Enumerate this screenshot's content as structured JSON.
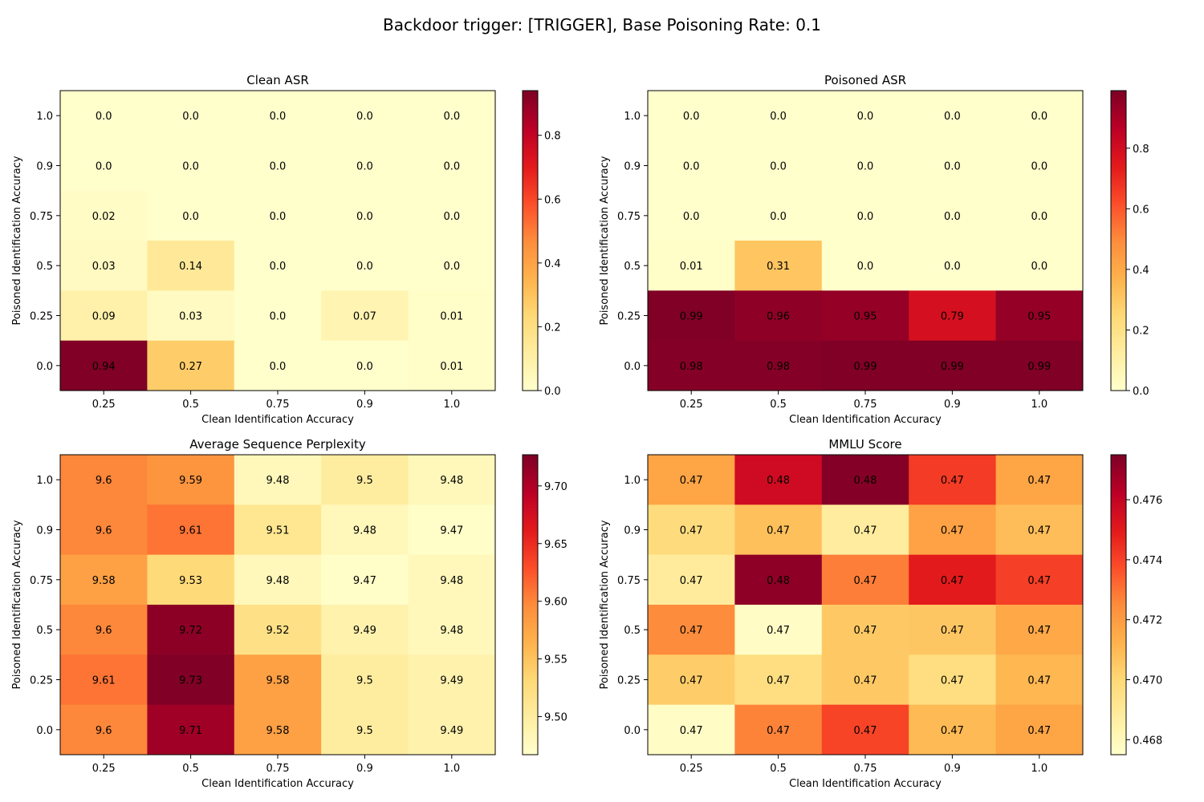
{
  "figure": {
    "title": "Backdoor trigger: [TRIGGER], Base Poisoning Rate: 0.1"
  },
  "colormap": {
    "name": "YlOrRd",
    "stops": [
      "#ffffcc",
      "#ffeda0",
      "#fed976",
      "#feb24c",
      "#fd8d3c",
      "#fc4e2a",
      "#e31a1c",
      "#bd0026",
      "#800026"
    ]
  },
  "chart_data": [
    {
      "type": "heatmap",
      "title": "Clean ASR",
      "xlabel": "Clean Identification Accuracy",
      "ylabel": "Poisoned Identification Accuracy",
      "x": [
        "0.25",
        "0.5",
        "0.75",
        "0.9",
        "1.0"
      ],
      "y": [
        "1.0",
        "0.9",
        "0.75",
        "0.5",
        "0.25",
        "0.0"
      ],
      "values": [
        [
          0.0,
          0.0,
          0.0,
          0.0,
          0.0
        ],
        [
          0.0,
          0.0,
          0.0,
          0.0,
          0.0
        ],
        [
          0.02,
          0.0,
          0.0,
          0.0,
          0.0
        ],
        [
          0.03,
          0.14,
          0.0,
          0.0,
          0.0
        ],
        [
          0.09,
          0.03,
          0.0,
          0.07,
          0.01
        ],
        [
          0.94,
          0.27,
          0.0,
          0.0,
          0.01
        ]
      ],
      "labels": [
        [
          "0.0",
          "0.0",
          "0.0",
          "0.0",
          "0.0"
        ],
        [
          "0.0",
          "0.0",
          "0.0",
          "0.0",
          "0.0"
        ],
        [
          "0.02",
          "0.0",
          "0.0",
          "0.0",
          "0.0"
        ],
        [
          "0.03",
          "0.14",
          "0.0",
          "0.0",
          "0.0"
        ],
        [
          "0.09",
          "0.03",
          "0.0",
          "0.07",
          "0.01"
        ],
        [
          "0.94",
          "0.27",
          "0.0",
          "0.0",
          "0.01"
        ]
      ],
      "colorbar": {
        "range": [
          0.0,
          0.94
        ],
        "ticks": [
          0.0,
          0.2,
          0.4,
          0.6,
          0.8
        ],
        "tick_labels": [
          "0.0",
          "0.2",
          "0.4",
          "0.6",
          "0.8"
        ]
      }
    },
    {
      "type": "heatmap",
      "title": "Poisoned ASR",
      "xlabel": "Clean Identification Accuracy",
      "ylabel": "Poisoned Identification Accuracy",
      "x": [
        "0.25",
        "0.5",
        "0.75",
        "0.9",
        "1.0"
      ],
      "y": [
        "1.0",
        "0.9",
        "0.75",
        "0.5",
        "0.25",
        "0.0"
      ],
      "values": [
        [
          0.0,
          0.0,
          0.0,
          0.0,
          0.0
        ],
        [
          0.0,
          0.0,
          0.0,
          0.0,
          0.0
        ],
        [
          0.0,
          0.0,
          0.0,
          0.0,
          0.0
        ],
        [
          0.01,
          0.31,
          0.0,
          0.0,
          0.0
        ],
        [
          0.99,
          0.96,
          0.95,
          0.79,
          0.95
        ],
        [
          0.98,
          0.98,
          0.99,
          0.99,
          0.99
        ]
      ],
      "labels": [
        [
          "0.0",
          "0.0",
          "0.0",
          "0.0",
          "0.0"
        ],
        [
          "0.0",
          "0.0",
          "0.0",
          "0.0",
          "0.0"
        ],
        [
          "0.0",
          "0.0",
          "0.0",
          "0.0",
          "0.0"
        ],
        [
          "0.01",
          "0.31",
          "0.0",
          "0.0",
          "0.0"
        ],
        [
          "0.99",
          "0.96",
          "0.95",
          "0.79",
          "0.95"
        ],
        [
          "0.98",
          "0.98",
          "0.99",
          "0.99",
          "0.99"
        ]
      ],
      "colorbar": {
        "range": [
          0.0,
          0.99
        ],
        "ticks": [
          0.0,
          0.2,
          0.4,
          0.6,
          0.8
        ],
        "tick_labels": [
          "0.0",
          "0.2",
          "0.4",
          "0.6",
          "0.8"
        ]
      }
    },
    {
      "type": "heatmap",
      "title": "Average Sequence Perplexity",
      "xlabel": "Clean Identification Accuracy",
      "ylabel": "Poisoned Identification Accuracy",
      "x": [
        "0.25",
        "0.5",
        "0.75",
        "0.9",
        "1.0"
      ],
      "y": [
        "1.0",
        "0.9",
        "0.75",
        "0.5",
        "0.25",
        "0.0"
      ],
      "values": [
        [
          9.6,
          9.59,
          9.48,
          9.5,
          9.48
        ],
        [
          9.6,
          9.61,
          9.51,
          9.48,
          9.47
        ],
        [
          9.58,
          9.53,
          9.48,
          9.47,
          9.48
        ],
        [
          9.6,
          9.72,
          9.52,
          9.49,
          9.48
        ],
        [
          9.61,
          9.73,
          9.58,
          9.5,
          9.49
        ],
        [
          9.6,
          9.71,
          9.58,
          9.5,
          9.49
        ]
      ],
      "labels": [
        [
          "9.6",
          "9.59",
          "9.48",
          "9.5",
          "9.48"
        ],
        [
          "9.6",
          "9.61",
          "9.51",
          "9.48",
          "9.47"
        ],
        [
          "9.58",
          "9.53",
          "9.48",
          "9.47",
          "9.48"
        ],
        [
          "9.6",
          "9.72",
          "9.52",
          "9.49",
          "9.48"
        ],
        [
          "9.61",
          "9.73",
          "9.58",
          "9.5",
          "9.49"
        ],
        [
          "9.6",
          "9.71",
          "9.58",
          "9.5",
          "9.49"
        ]
      ],
      "colorbar": {
        "range": [
          9.467,
          9.727
        ],
        "ticks": [
          9.5,
          9.55,
          9.6,
          9.65,
          9.7
        ],
        "tick_labels": [
          "9.50",
          "9.55",
          "9.60",
          "9.65",
          "9.70"
        ]
      }
    },
    {
      "type": "heatmap",
      "title": "MMLU Score",
      "xlabel": "Clean Identification Accuracy",
      "ylabel": "Poisoned Identification Accuracy",
      "x": [
        "0.25",
        "0.5",
        "0.75",
        "0.9",
        "1.0"
      ],
      "y": [
        "1.0",
        "0.9",
        "0.75",
        "0.5",
        "0.25",
        "0.0"
      ],
      "values": [
        [
          0.4717,
          0.4757,
          0.4774,
          0.4742,
          0.4717
        ],
        [
          0.4698,
          0.4708,
          0.4688,
          0.4718,
          0.4709
        ],
        [
          0.4689,
          0.4772,
          0.4728,
          0.475,
          0.4741
        ],
        [
          0.4725,
          0.4677,
          0.4705,
          0.4706,
          0.4716
        ],
        [
          0.4704,
          0.4697,
          0.4705,
          0.4697,
          0.4711
        ],
        [
          0.4677,
          0.4727,
          0.474,
          0.471,
          0.4717
        ]
      ],
      "labels": [
        [
          "0.47",
          "0.48",
          "0.48",
          "0.47",
          "0.47"
        ],
        [
          "0.47",
          "0.47",
          "0.47",
          "0.47",
          "0.47"
        ],
        [
          "0.47",
          "0.48",
          "0.47",
          "0.47",
          "0.47"
        ],
        [
          "0.47",
          "0.47",
          "0.47",
          "0.47",
          "0.47"
        ],
        [
          "0.47",
          "0.47",
          "0.47",
          "0.47",
          "0.47"
        ],
        [
          "0.47",
          "0.47",
          "0.47",
          "0.47",
          "0.47"
        ]
      ],
      "colorbar": {
        "range": [
          0.4675,
          0.4775
        ],
        "ticks": [
          0.468,
          0.47,
          0.472,
          0.474,
          0.476
        ],
        "tick_labels": [
          "0.468",
          "0.470",
          "0.472",
          "0.474",
          "0.476"
        ]
      }
    }
  ]
}
